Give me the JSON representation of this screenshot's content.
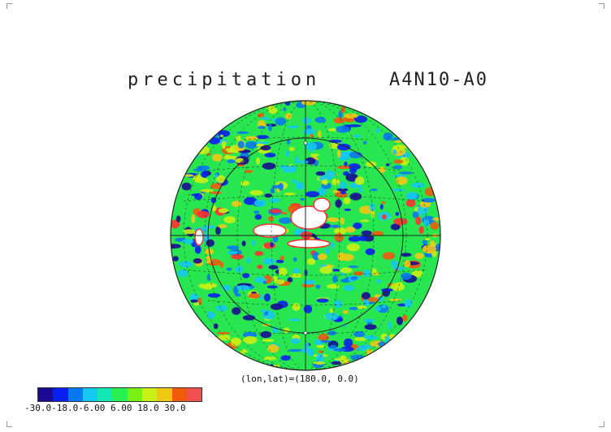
{
  "title": {
    "variable": "precipitation",
    "experiment": "A4N10-A0"
  },
  "projection_center": "(lon,lat)=(180.0, 0.0)",
  "colorbar": {
    "colors": [
      "#1a0a96",
      "#0a1ef0",
      "#0a78f0",
      "#14c8f0",
      "#14e6b4",
      "#28f050",
      "#78f014",
      "#c8f014",
      "#f0c814",
      "#f05a0a",
      "#f05050"
    ],
    "label_text": "-30.0-18.0-6.00 6.00 18.0 30.0"
  },
  "map": {
    "background_color": "#28e650",
    "anomaly_colors": {
      "strong_negative": "#1a0a96",
      "negative": "#0a1ef0",
      "weak_negative": "#0a78f0",
      "slight_negative": "#14c8f0",
      "slight_positive": "#c8f014",
      "positive": "#f0c814",
      "strong_positive": "#f05a0a",
      "extreme_positive": "#ff3030",
      "missing": "#ffffff"
    }
  }
}
